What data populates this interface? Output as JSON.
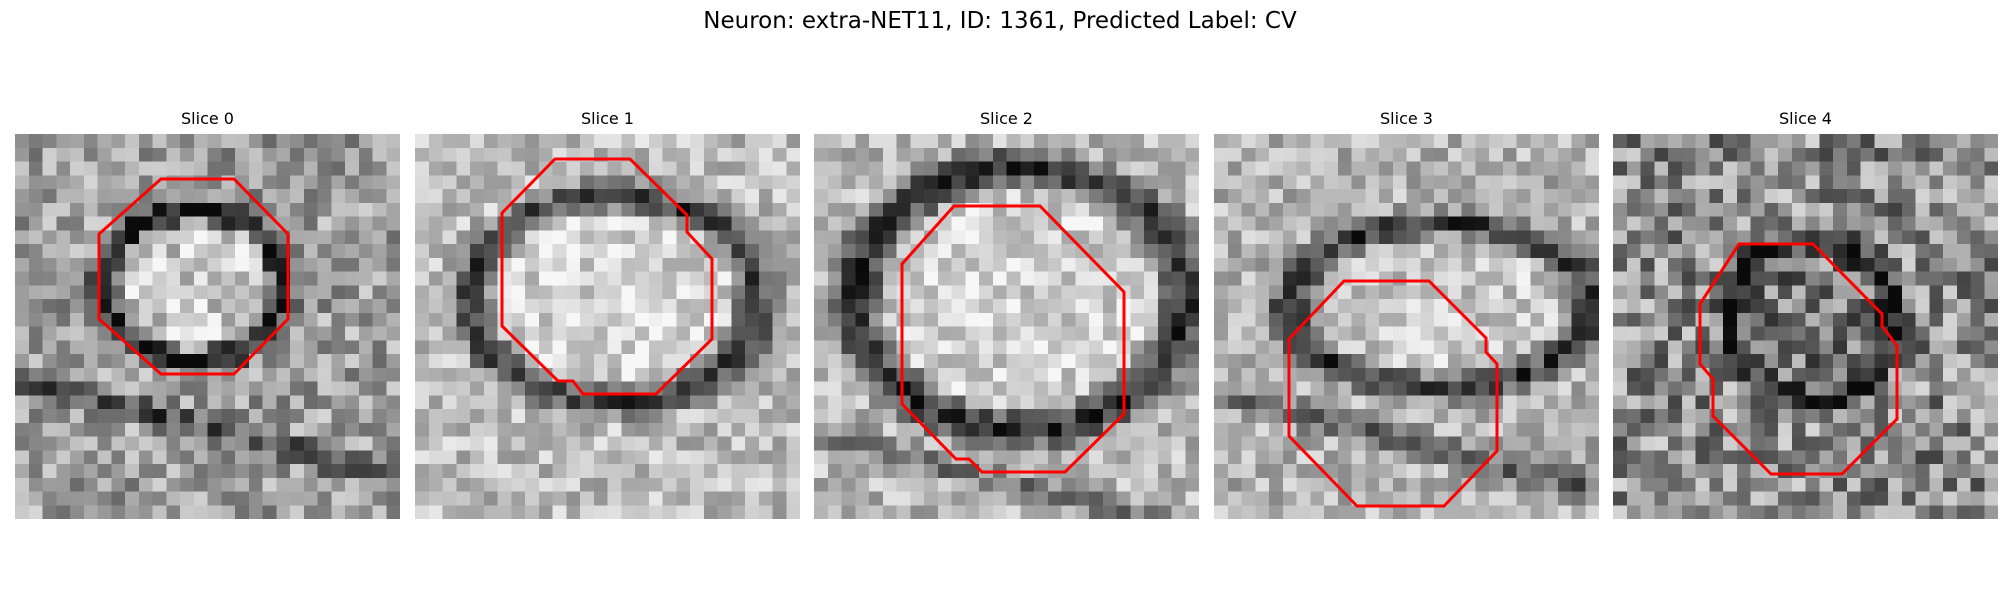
{
  "figure": {
    "title": "Neuron: extra-NET11, ID: 1361, Predicted Label: CV"
  },
  "colors": {
    "contour": "#ff0000",
    "background": "#ffffff"
  },
  "slices": [
    {
      "title": "Slice 0"
    },
    {
      "title": "Slice 1"
    },
    {
      "title": "Slice 2"
    },
    {
      "title": "Slice 3"
    },
    {
      "title": "Slice 4"
    }
  ]
}
